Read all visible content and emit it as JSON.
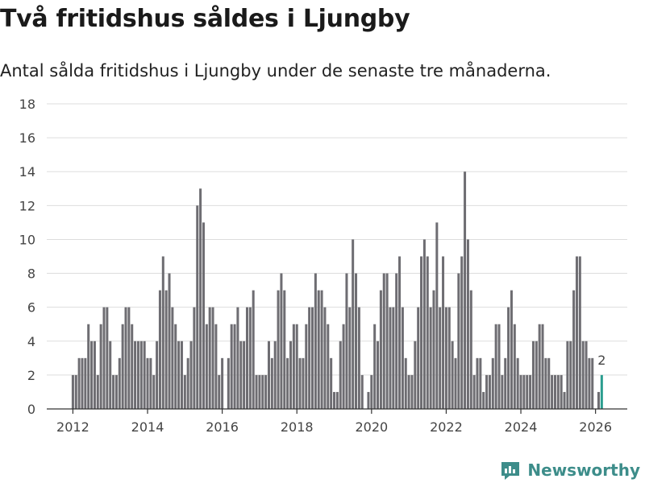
{
  "header": {
    "title": "Två fritidshus såldes i Ljungby",
    "subtitle": "Antal sålda fritidshus i Ljungby under de senaste tre månaderna."
  },
  "brand": {
    "name": "Newsworthy",
    "icon": "newsworthy-logo-icon"
  },
  "colors": {
    "bar": "#6e6d72",
    "highlight": "#2a9d8f",
    "grid": "#dddddd",
    "brand": "#3d8d8a"
  },
  "chart_data": {
    "type": "bar",
    "title": "Två fritidshus såldes i Ljungby",
    "subtitle": "Antal sålda fritidshus i Ljungby under de senaste tre månaderna.",
    "xlabel": "",
    "ylabel": "",
    "ylim": [
      0,
      18
    ],
    "yticks": [
      0,
      2,
      4,
      6,
      8,
      10,
      12,
      14,
      16,
      18
    ],
    "x_start": 2012.0,
    "x_step": 0.08333,
    "xlim": [
      2011.3,
      2026.85
    ],
    "xticks": [
      2012,
      2014,
      2016,
      2018,
      2020,
      2022,
      2024,
      2026
    ],
    "grid": true,
    "values": [
      2,
      2,
      3,
      3,
      3,
      5,
      4,
      4,
      2,
      5,
      6,
      6,
      4,
      2,
      2,
      3,
      5,
      6,
      6,
      5,
      4,
      4,
      4,
      4,
      3,
      3,
      2,
      4,
      7,
      9,
      7,
      8,
      6,
      5,
      4,
      4,
      2,
      3,
      4,
      6,
      12,
      13,
      11,
      5,
      6,
      6,
      5,
      2,
      3,
      0,
      3,
      5,
      5,
      6,
      4,
      4,
      6,
      6,
      7,
      2,
      2,
      2,
      2,
      4,
      3,
      4,
      7,
      8,
      7,
      3,
      4,
      5,
      5,
      3,
      3,
      5,
      6,
      6,
      8,
      7,
      7,
      6,
      5,
      3,
      1,
      1,
      4,
      5,
      8,
      6,
      10,
      8,
      6,
      2,
      0,
      1,
      2,
      5,
      4,
      7,
      8,
      8,
      6,
      6,
      8,
      9,
      6,
      3,
      2,
      2,
      4,
      6,
      9,
      10,
      9,
      6,
      7,
      11,
      6,
      9,
      6,
      6,
      4,
      3,
      8,
      9,
      14,
      10,
      7,
      2,
      3,
      3,
      1,
      2,
      2,
      3,
      5,
      5,
      2,
      3,
      6,
      7,
      5,
      3,
      2,
      2,
      2,
      2,
      4,
      4,
      5,
      5,
      3,
      3,
      2,
      2,
      2,
      2,
      1,
      4,
      4,
      7,
      9,
      9,
      4,
      4,
      3,
      3,
      0,
      1,
      2
    ],
    "highlight_index": 170,
    "highlight_label": "2"
  }
}
